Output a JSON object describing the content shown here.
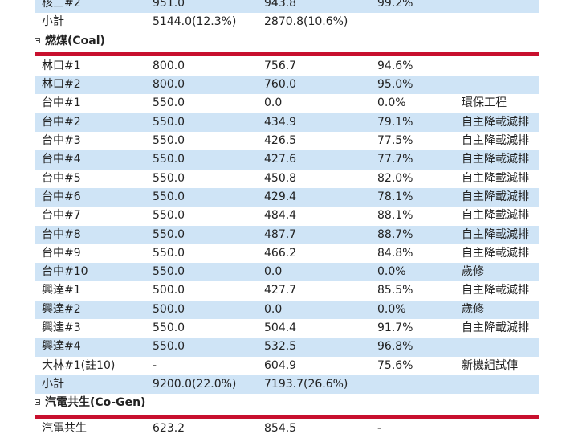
{
  "sections": [
    {
      "rows": [
        [
          "核三#2",
          "951.0",
          "943.8",
          "99.2%",
          ""
        ],
        [
          "小計",
          "5144.0(12.3%)",
          "2870.8(10.6%)",
          "",
          ""
        ]
      ]
    },
    {
      "title": "燃煤(Coal)",
      "rows": [
        [
          "林口#1",
          "800.0",
          "756.7",
          "94.6%",
          ""
        ],
        [
          "林口#2",
          "800.0",
          "760.0",
          "95.0%",
          ""
        ],
        [
          "台中#1",
          "550.0",
          "0.0",
          "0.0%",
          "環保工程"
        ],
        [
          "台中#2",
          "550.0",
          "434.9",
          "79.1%",
          "自主降載減排"
        ],
        [
          "台中#3",
          "550.0",
          "426.5",
          "77.5%",
          "自主降載減排"
        ],
        [
          "台中#4",
          "550.0",
          "427.6",
          "77.7%",
          "自主降載減排"
        ],
        [
          "台中#5",
          "550.0",
          "450.8",
          "82.0%",
          "自主降載減排"
        ],
        [
          "台中#6",
          "550.0",
          "429.4",
          "78.1%",
          "自主降載減排"
        ],
        [
          "台中#7",
          "550.0",
          "484.4",
          "88.1%",
          "自主降載減排"
        ],
        [
          "台中#8",
          "550.0",
          "487.7",
          "88.7%",
          "自主降載減排"
        ],
        [
          "台中#9",
          "550.0",
          "466.2",
          "84.8%",
          "自主降載減排"
        ],
        [
          "台中#10",
          "550.0",
          "0.0",
          "0.0%",
          "歲修"
        ],
        [
          "興達#1",
          "500.0",
          "427.7",
          "85.5%",
          "自主降載減排"
        ],
        [
          "興達#2",
          "500.0",
          "0.0",
          "0.0%",
          "歲修"
        ],
        [
          "興達#3",
          "550.0",
          "504.4",
          "91.7%",
          "自主降載減排"
        ],
        [
          "興達#4",
          "550.0",
          "532.5",
          "96.8%",
          ""
        ],
        [
          "大林#1(註10)",
          "-",
          "604.9",
          "75.6%",
          "新機組試俥"
        ],
        [
          "小計",
          "9200.0(22.0%)",
          "7193.7(26.6%)",
          "",
          ""
        ]
      ]
    },
    {
      "title": "汽電共生(Co-Gen)",
      "rows": [
        [
          "汽電共生",
          "623.2",
          "854.5",
          "-",
          ""
        ]
      ]
    }
  ],
  "colors": {
    "row_stripe": "#cfe4f6",
    "section_bar": "#c8102e"
  },
  "icons": {
    "section_toggle": "collapse-minus-icon"
  }
}
